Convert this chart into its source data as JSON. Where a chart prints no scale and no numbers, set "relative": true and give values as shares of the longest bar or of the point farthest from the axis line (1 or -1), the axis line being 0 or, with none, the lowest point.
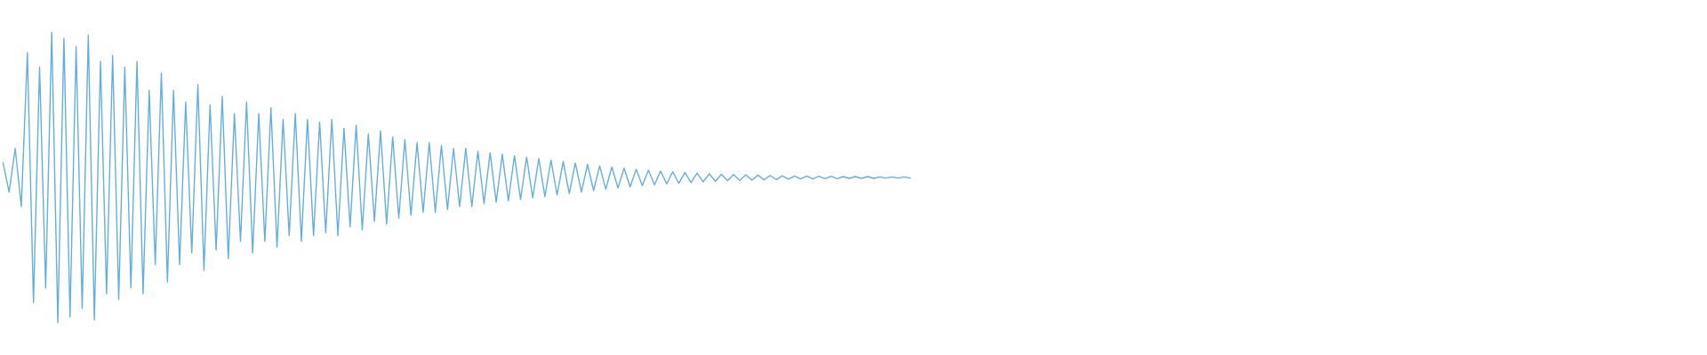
{
  "chart_data": {
    "type": "line",
    "relative": true,
    "tick_labels": false,
    "marker": "none",
    "line_style": "solid",
    "categories": [
      null,
      null,
      null,
      null,
      null,
      null,
      null,
      null,
      null,
      null,
      null,
      null,
      null,
      null,
      null,
      null,
      null,
      null,
      null,
      null,
      null,
      null,
      null,
      null,
      null,
      null,
      null,
      null,
      null,
      null,
      null,
      null,
      null,
      null,
      null,
      null,
      null,
      null,
      null,
      null,
      null,
      null,
      null,
      null,
      null,
      null,
      null,
      null,
      null,
      null,
      null,
      null,
      null,
      null,
      null,
      null,
      null,
      null,
      null,
      null,
      null,
      null,
      null,
      null,
      null,
      null,
      null,
      null,
      null,
      null,
      null,
      null,
      null,
      null,
      null,
      null,
      null,
      null,
      null,
      null,
      null,
      null,
      null,
      null,
      null,
      null,
      null,
      null,
      null,
      null,
      null,
      null,
      null,
      null,
      null,
      null,
      null,
      null,
      null,
      null,
      null,
      null,
      null,
      null,
      null,
      null,
      null,
      null,
      null,
      null,
      null,
      null,
      null,
      null,
      null,
      null,
      null,
      null,
      null,
      null,
      null,
      null,
      null,
      null,
      null,
      null,
      null,
      null,
      null,
      null,
      null,
      null,
      null,
      null,
      null,
      null,
      null,
      null,
      null,
      null,
      null,
      null,
      null,
      null,
      null,
      null,
      null,
      null,
      null,
      null
    ],
    "series": [
      {
        "color": "#62aee3",
        "values": [
          0.55,
          0.45,
          0.6,
          0.4,
          0.93,
          0.07,
          0.88,
          0.12,
          1,
          0,
          0.98,
          0.02,
          0.95,
          0.05,
          0.99,
          0.01,
          0.9,
          0.1,
          0.92,
          0.08,
          0.88,
          0.12,
          0.9,
          0.1,
          0.8,
          0.2,
          0.86,
          0.14,
          0.8,
          0.2,
          0.76,
          0.24,
          0.82,
          0.18,
          0.75,
          0.25,
          0.78,
          0.22,
          0.72,
          0.28,
          0.76,
          0.24,
          0.72,
          0.28,
          0.74,
          0.26,
          0.7,
          0.3,
          0.72,
          0.28,
          0.7,
          0.3,
          0.69,
          0.31,
          0.7,
          0.3,
          0.67,
          0.33,
          0.68,
          0.32,
          0.65,
          0.35,
          0.66,
          0.34,
          0.64,
          0.36,
          0.63,
          0.37,
          0.62,
          0.38,
          0.62,
          0.38,
          0.61,
          0.39,
          0.6,
          0.4,
          0.6,
          0.4,
          0.59,
          0.41,
          0.585,
          0.415,
          0.58,
          0.42,
          0.575,
          0.425,
          0.57,
          0.43,
          0.565,
          0.435,
          0.56,
          0.44,
          0.555,
          0.445,
          0.55,
          0.45,
          0.545,
          0.455,
          0.54,
          0.46,
          0.536,
          0.464,
          0.532,
          0.468,
          0.528,
          0.472,
          0.525,
          0.475,
          0.522,
          0.478,
          0.52,
          0.48,
          0.517,
          0.483,
          0.515,
          0.485,
          0.513,
          0.487,
          0.511,
          0.489,
          0.51,
          0.49,
          0.509,
          0.491,
          0.508,
          0.492,
          0.507,
          0.493,
          0.506,
          0.494,
          0.505,
          0.495,
          0.505,
          0.495,
          0.504,
          0.496,
          0.504,
          0.496,
          0.503,
          0.497,
          0.503,
          0.497,
          0.503,
          0.497,
          0.502,
          0.498,
          0.502,
          0.498,
          0.502,
          0.498
        ]
      }
    ]
  }
}
